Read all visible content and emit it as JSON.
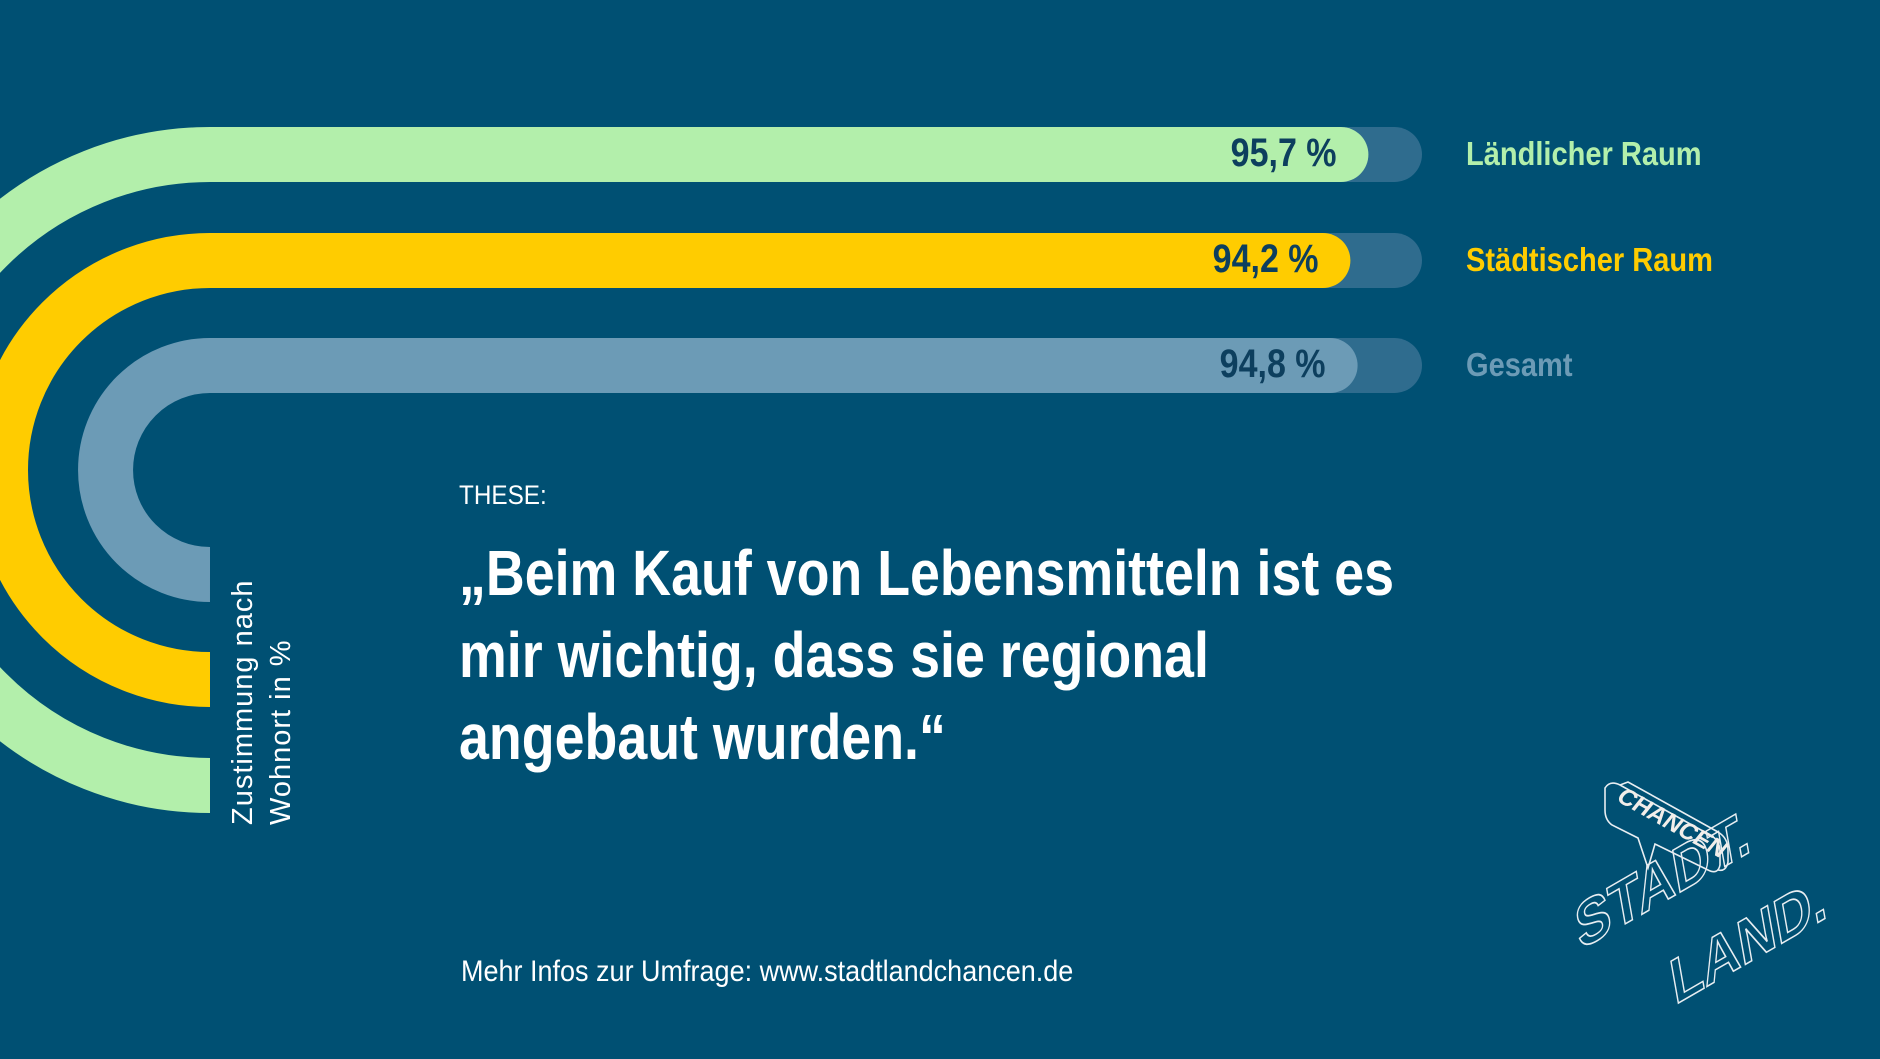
{
  "chart_data": {
    "type": "bar",
    "orientation": "horizontal",
    "categories": [
      "Ländlicher Raum",
      "Städtischer Raum",
      "Gesamt"
    ],
    "values": [
      95.7,
      94.2,
      94.8
    ],
    "value_labels": [
      "95,7 %",
      "94,2 %",
      "94,8 %"
    ],
    "colors": [
      "#b3efab",
      "#ffcc00",
      "#6c9bb6"
    ],
    "track_color": "#2f6c8e",
    "ylabel": [
      "Zustimmung nach",
      "Wohnort in %"
    ],
    "xlim": [
      0,
      100
    ]
  },
  "these_label": "THESE:",
  "quote_lines": [
    "„Beim Kauf von Lebensmitteln ist es",
    "mir wichtig, dass sie regional",
    "angebaut wurden.“"
  ],
  "footer": "Mehr Infos zur Umfrage: www.stadtlandchancen.de",
  "logo": {
    "bubble": "CHANCEN",
    "word1": "STADT.",
    "word2": "LAND."
  },
  "colors": {
    "background": "#005073",
    "text": "#ffffff"
  }
}
